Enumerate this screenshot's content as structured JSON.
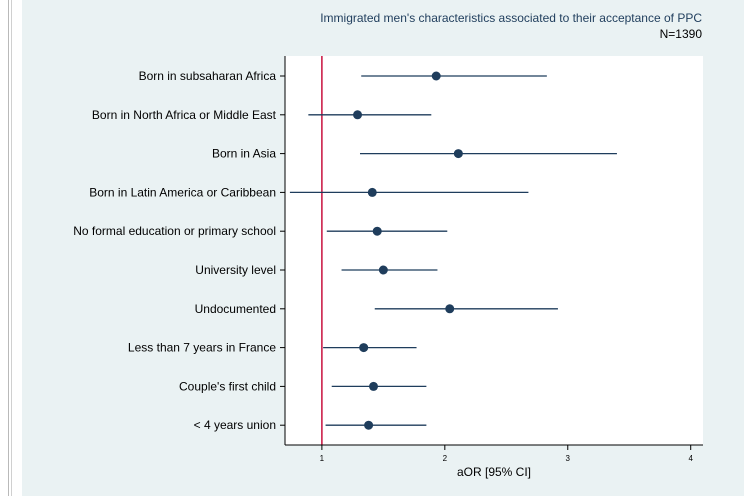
{
  "chart_data": {
    "type": "forest",
    "title": "Immigrated men's characteristics associated to their acceptance of PPC",
    "subtitle": "N=1390",
    "xlabel": "aOR [95% CI]",
    "xlim": [
      0.7,
      4.1
    ],
    "xticks": [
      1,
      2,
      3,
      4
    ],
    "reference_line": 1,
    "grid": false,
    "colors": {
      "marker": "#1f3d5c",
      "ci": "#1f3d5c",
      "reference": "#cc1f4a",
      "plot_bg": "#ffffff",
      "panel_bg": "#eaf2f3"
    },
    "rows": [
      {
        "label": "Born in subsaharan Africa",
        "estimate": 1.93,
        "ci_low": 1.32,
        "ci_high": 2.83
      },
      {
        "label": "Born in North Africa or Middle East",
        "estimate": 1.29,
        "ci_low": 0.89,
        "ci_high": 1.89
      },
      {
        "label": "Born in Asia",
        "estimate": 2.11,
        "ci_low": 1.31,
        "ci_high": 3.4
      },
      {
        "label": "Born in Latin America or Caribbean",
        "estimate": 1.41,
        "ci_low": 0.74,
        "ci_high": 2.68
      },
      {
        "label": "No formal education or primary school",
        "estimate": 1.45,
        "ci_low": 1.04,
        "ci_high": 2.02
      },
      {
        "label": "University level",
        "estimate": 1.5,
        "ci_low": 1.16,
        "ci_high": 1.94
      },
      {
        "label": "Undocumented",
        "estimate": 2.04,
        "ci_low": 1.43,
        "ci_high": 2.92
      },
      {
        "label": "Less than 7 years in France",
        "estimate": 1.34,
        "ci_low": 1.01,
        "ci_high": 1.77
      },
      {
        "label": "Couple's first child",
        "estimate": 1.42,
        "ci_low": 1.08,
        "ci_high": 1.85
      },
      {
        "label": "< 4 years union",
        "estimate": 1.38,
        "ci_low": 1.03,
        "ci_high": 1.85
      }
    ]
  }
}
